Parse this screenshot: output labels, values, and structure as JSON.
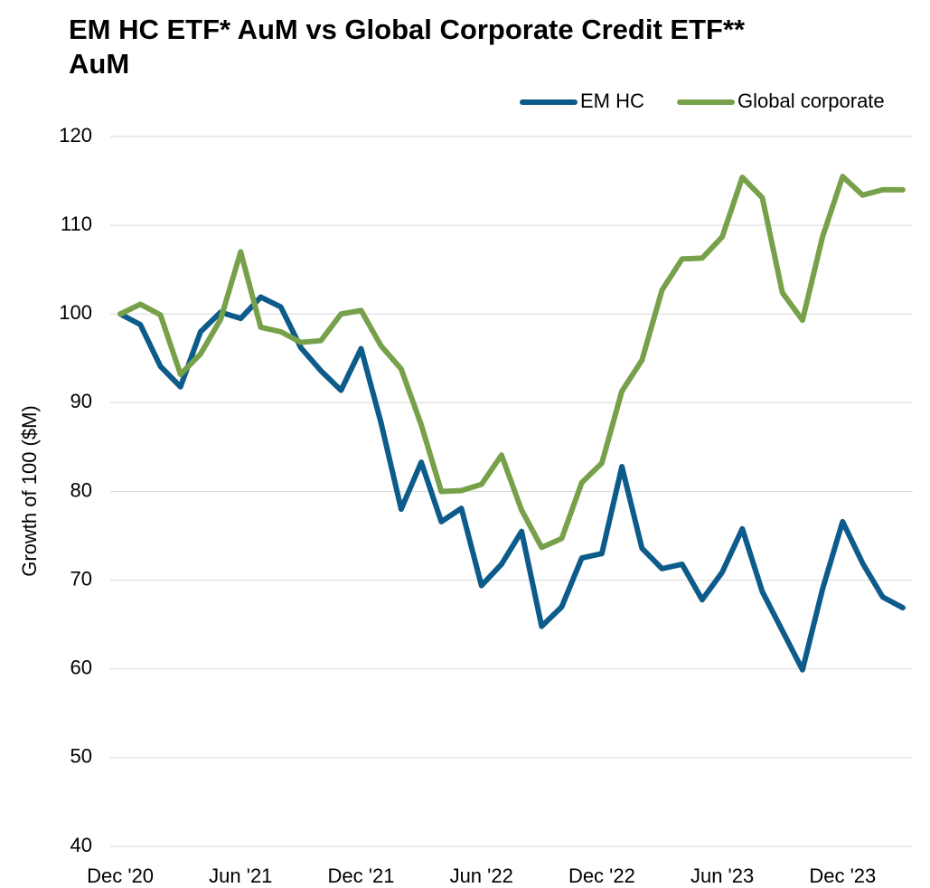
{
  "chart_data": {
    "type": "line",
    "title": "EM HC ETF* AuM vs Global Corporate Credit ETF** AuM",
    "y_label": "Growth of 100 ($M)",
    "categories": [
      "Dec '20",
      null,
      null,
      null,
      null,
      null,
      "Jun '21",
      null,
      null,
      null,
      null,
      null,
      "Dec '21",
      null,
      null,
      null,
      null,
      null,
      "Jun '22",
      null,
      null,
      null,
      null,
      null,
      "Dec '22",
      null,
      null,
      null,
      null,
      null,
      "Jun '23",
      null,
      null,
      null,
      null,
      null,
      "Dec '23",
      null,
      null,
      null
    ],
    "series": [
      {
        "name": "EM HC",
        "color": "#0d5b8a",
        "values": [
          100,
          98.8,
          94.1,
          91.8,
          98.0,
          100.2,
          99.5,
          101.9,
          100.8,
          96.2,
          93.6,
          91.4,
          96.1,
          87.7,
          78.0,
          83.3,
          76.6,
          78.1,
          69.4,
          71.8,
          75.5,
          64.8,
          67.0,
          72.5,
          73.0,
          82.8,
          73.6,
          71.3,
          71.8,
          67.8,
          70.9,
          75.8,
          68.7,
          64.3,
          59.9,
          69.0,
          76.6,
          71.9,
          68.1,
          66.9
        ]
      },
      {
        "name": "Global corporate",
        "color": "#77a04a",
        "values": [
          100,
          101.1,
          99.9,
          93.2,
          95.5,
          99.4,
          107.0,
          98.5,
          98.0,
          96.8,
          97.0,
          100.0,
          100.4,
          96.4,
          93.8,
          87.5,
          80.0,
          80.1,
          80.8,
          84.1,
          77.9,
          73.7,
          74.7,
          81.0,
          83.2,
          91.3,
          94.8,
          102.7,
          106.2,
          106.3,
          108.7,
          115.4,
          113.1,
          102.4,
          99.3,
          108.7,
          115.5,
          113.4,
          114.0,
          114.0
        ]
      }
    ],
    "ylim": [
      40,
      120
    ],
    "yticks": [
      40,
      50,
      60,
      70,
      80,
      90,
      100,
      110,
      120
    ],
    "grid": true,
    "legend": "top-right"
  }
}
